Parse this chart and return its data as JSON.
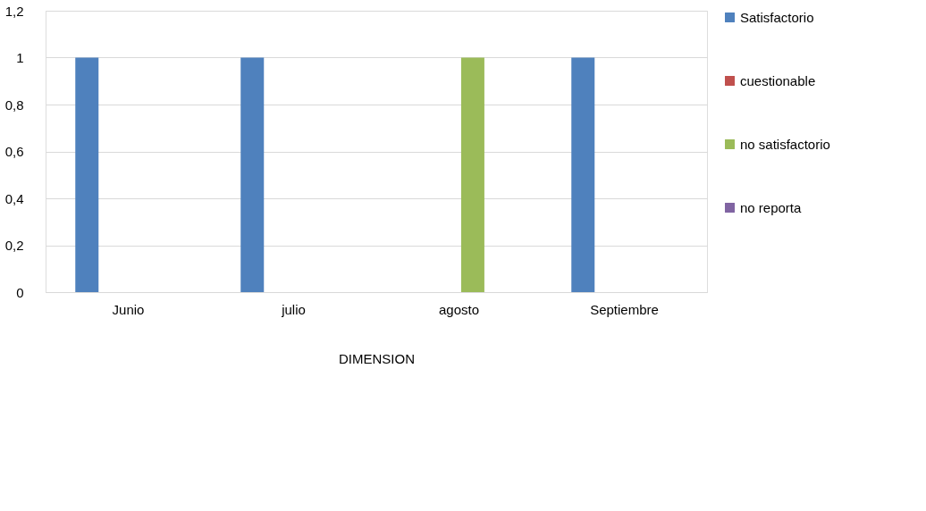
{
  "chart_data": {
    "type": "bar",
    "xlabel": "DIMENSION",
    "categories": [
      "Junio",
      "julio",
      "agosto",
      "Septiembre"
    ],
    "series": [
      {
        "name": "Satisfactorio",
        "color": "#4f81bd",
        "values": [
          1,
          1,
          null,
          1
        ]
      },
      {
        "name": "cuestionable",
        "color": "#c0504d",
        "values": [
          null,
          null,
          null,
          null
        ]
      },
      {
        "name": "no satisfactorio",
        "color": "#9bbb59",
        "values": [
          null,
          null,
          1,
          null
        ]
      },
      {
        "name": "no reporta",
        "color": "#8064a2",
        "values": [
          null,
          null,
          null,
          null
        ]
      }
    ],
    "ylim": [
      0,
      1.2
    ],
    "yticks": [
      0,
      {
        "value": 0.2,
        "label": "0,2"
      },
      {
        "value": 0.4,
        "label": "0,4"
      },
      {
        "value": 0.6,
        "label": "0,6"
      },
      {
        "value": 0.8,
        "label": "0,8"
      },
      1,
      {
        "value": 1.2,
        "label": "1,2"
      }
    ],
    "grid": "y",
    "legend": "right"
  }
}
